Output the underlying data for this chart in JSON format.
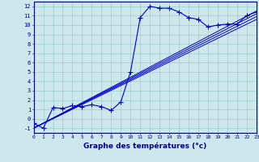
{
  "xlabel": "Graphe des températures (°c)",
  "xlim": [
    0,
    23
  ],
  "ylim": [
    -1.5,
    12.5
  ],
  "xticks": [
    0,
    1,
    2,
    3,
    4,
    5,
    6,
    7,
    8,
    9,
    10,
    11,
    12,
    13,
    14,
    15,
    16,
    17,
    18,
    19,
    20,
    21,
    22,
    23
  ],
  "yticks": [
    -1,
    0,
    1,
    2,
    3,
    4,
    5,
    6,
    7,
    8,
    9,
    10,
    11,
    12
  ],
  "bg_color": "#cce8ec",
  "line_color": "#0000cc",
  "grid_color": "#99cccc",
  "jagged_x": [
    0,
    1,
    2,
    3,
    4,
    5,
    6,
    7,
    8,
    9,
    10,
    11,
    12,
    13,
    14,
    15,
    16,
    17,
    18,
    19,
    20,
    21,
    22,
    23
  ],
  "jagged_y": [
    -0.5,
    -1.0,
    1.2,
    1.1,
    1.4,
    1.3,
    1.5,
    1.3,
    0.9,
    1.8,
    5.0,
    10.8,
    12.0,
    11.8,
    11.8,
    11.4,
    10.8,
    10.6,
    9.8,
    10.0,
    10.1,
    10.1,
    11.0,
    11.4
  ],
  "straight_lines": [
    [
      [
        0,
        23
      ],
      [
        -1.0,
        11.5
      ]
    ],
    [
      [
        0,
        23
      ],
      [
        -1.0,
        11.2
      ]
    ],
    [
      [
        0,
        23
      ],
      [
        -1.0,
        10.9
      ]
    ],
    [
      [
        0,
        23
      ],
      [
        -1.0,
        10.6
      ]
    ]
  ]
}
